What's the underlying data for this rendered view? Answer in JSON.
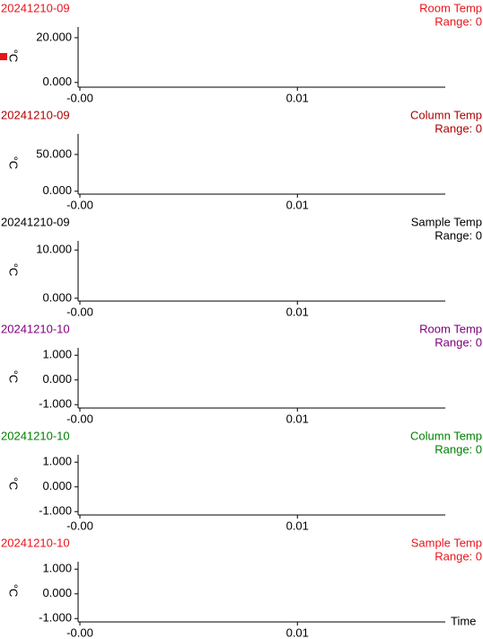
{
  "chart_data": [
    {
      "type": "line",
      "run": "20241210-09",
      "title": "Room Temp",
      "subtitle": "Range: 0",
      "ylabel": "°C",
      "color": "#e8141b",
      "ylim": [
        -1.7,
        24.8
      ],
      "yticks": [
        {
          "value": 0,
          "label": "0.000"
        },
        {
          "value": 20,
          "label": "20.000"
        }
      ],
      "xlim": [
        0,
        0.0168
      ],
      "xticks": [
        {
          "value": 0,
          "label": "-0.00"
        },
        0.01
      ]
    },
    {
      "type": "line",
      "run": "20241210-09",
      "title": "Column Temp",
      "subtitle": "Range: 0",
      "ylabel": "°C",
      "color": "#b00000",
      "ylim": [
        -2.7,
        78
      ],
      "yticks": [
        {
          "value": 0,
          "label": "0.000"
        },
        {
          "value": 50,
          "label": "50.000"
        }
      ],
      "xlim": [
        0,
        0.0168
      ],
      "xticks": [
        {
          "value": 0,
          "label": "-0.00"
        },
        0.01
      ]
    },
    {
      "type": "line",
      "run": "20241210-09",
      "title": "Sample Temp",
      "subtitle": "Range: 0",
      "ylabel": "°C",
      "color": "#000000",
      "ylim": [
        -0.4,
        11.9
      ],
      "yticks": [
        {
          "value": 0,
          "label": "0.000"
        },
        {
          "value": 10,
          "label": "10.000"
        }
      ],
      "xlim": [
        0,
        0.0168
      ],
      "xticks": [
        {
          "value": 0,
          "label": "-0.00"
        },
        0.01
      ]
    },
    {
      "type": "line",
      "run": "20241210-10",
      "title": "Room Temp",
      "subtitle": "Range: 0",
      "ylabel": "°C",
      "color": "#800080",
      "ylim": [
        -1.1,
        1.3
      ],
      "yticks": [
        {
          "value": -1,
          "label": "-1.000"
        },
        {
          "value": 0,
          "label": "0.000"
        },
        {
          "value": 1,
          "label": "1.000"
        }
      ],
      "xlim": [
        0,
        0.0168
      ],
      "xticks": [
        {
          "value": 0,
          "label": "-0.00"
        },
        0.01
      ]
    },
    {
      "type": "line",
      "run": "20241210-10",
      "title": "Column Temp",
      "subtitle": "Range: 0",
      "ylabel": "°C",
      "color": "#008000",
      "ylim": [
        -1.1,
        1.3
      ],
      "yticks": [
        {
          "value": -1,
          "label": "-1.000"
        },
        {
          "value": 0,
          "label": "0.000"
        },
        {
          "value": 1,
          "label": "1.000"
        }
      ],
      "xlim": [
        0,
        0.0168
      ],
      "xticks": [
        {
          "value": 0,
          "label": "-0.00"
        },
        0.01
      ]
    },
    {
      "type": "line",
      "run": "20241210-10",
      "title": "Sample Temp",
      "subtitle": "Range: 0",
      "ylabel": "°C",
      "color": "#e8141b",
      "ylim": [
        -1.1,
        1.3
      ],
      "yticks": [
        {
          "value": -1,
          "label": "-1.000"
        },
        {
          "value": 0,
          "label": "0.000"
        },
        {
          "value": 1,
          "label": "1.000"
        }
      ],
      "xlim": [
        0,
        0.0168
      ],
      "xticks": [
        {
          "value": 0,
          "label": "-0.00"
        },
        0.01
      ],
      "xlabel": "Time"
    }
  ]
}
